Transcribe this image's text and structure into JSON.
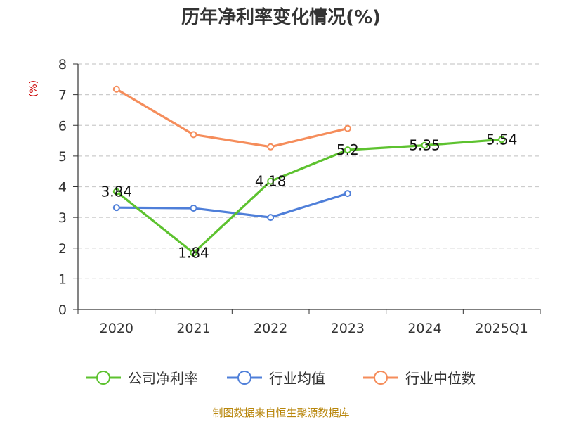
{
  "chart_data": {
    "type": "line",
    "title": "历年净利率变化情况(%)",
    "ylabel": "(%)",
    "xlabel": "",
    "categories": [
      "2020",
      "2021",
      "2022",
      "2023",
      "2024",
      "2025Q1"
    ],
    "ylim": [
      0,
      8
    ],
    "yticks": [
      0,
      1,
      2,
      3,
      4,
      5,
      6,
      7,
      8
    ],
    "grid": true,
    "legend_position": "bottom",
    "series": [
      {
        "name": "公司净利率",
        "color": "#5dc22f",
        "values": [
          3.84,
          1.84,
          4.18,
          5.2,
          5.35,
          5.54
        ],
        "labels": [
          "3.84",
          "1.84",
          "4.18",
          "5.2",
          "5.35",
          "5.54"
        ]
      },
      {
        "name": "行业均值",
        "color": "#4f7fd9",
        "values": [
          3.32,
          3.3,
          3.0,
          3.78,
          null,
          null
        ]
      },
      {
        "name": "行业中位数",
        "color": "#f58d5b",
        "values": [
          7.18,
          5.7,
          5.3,
          5.9,
          null,
          null
        ]
      }
    ],
    "source": "制图数据来自恒生聚源数据库"
  }
}
